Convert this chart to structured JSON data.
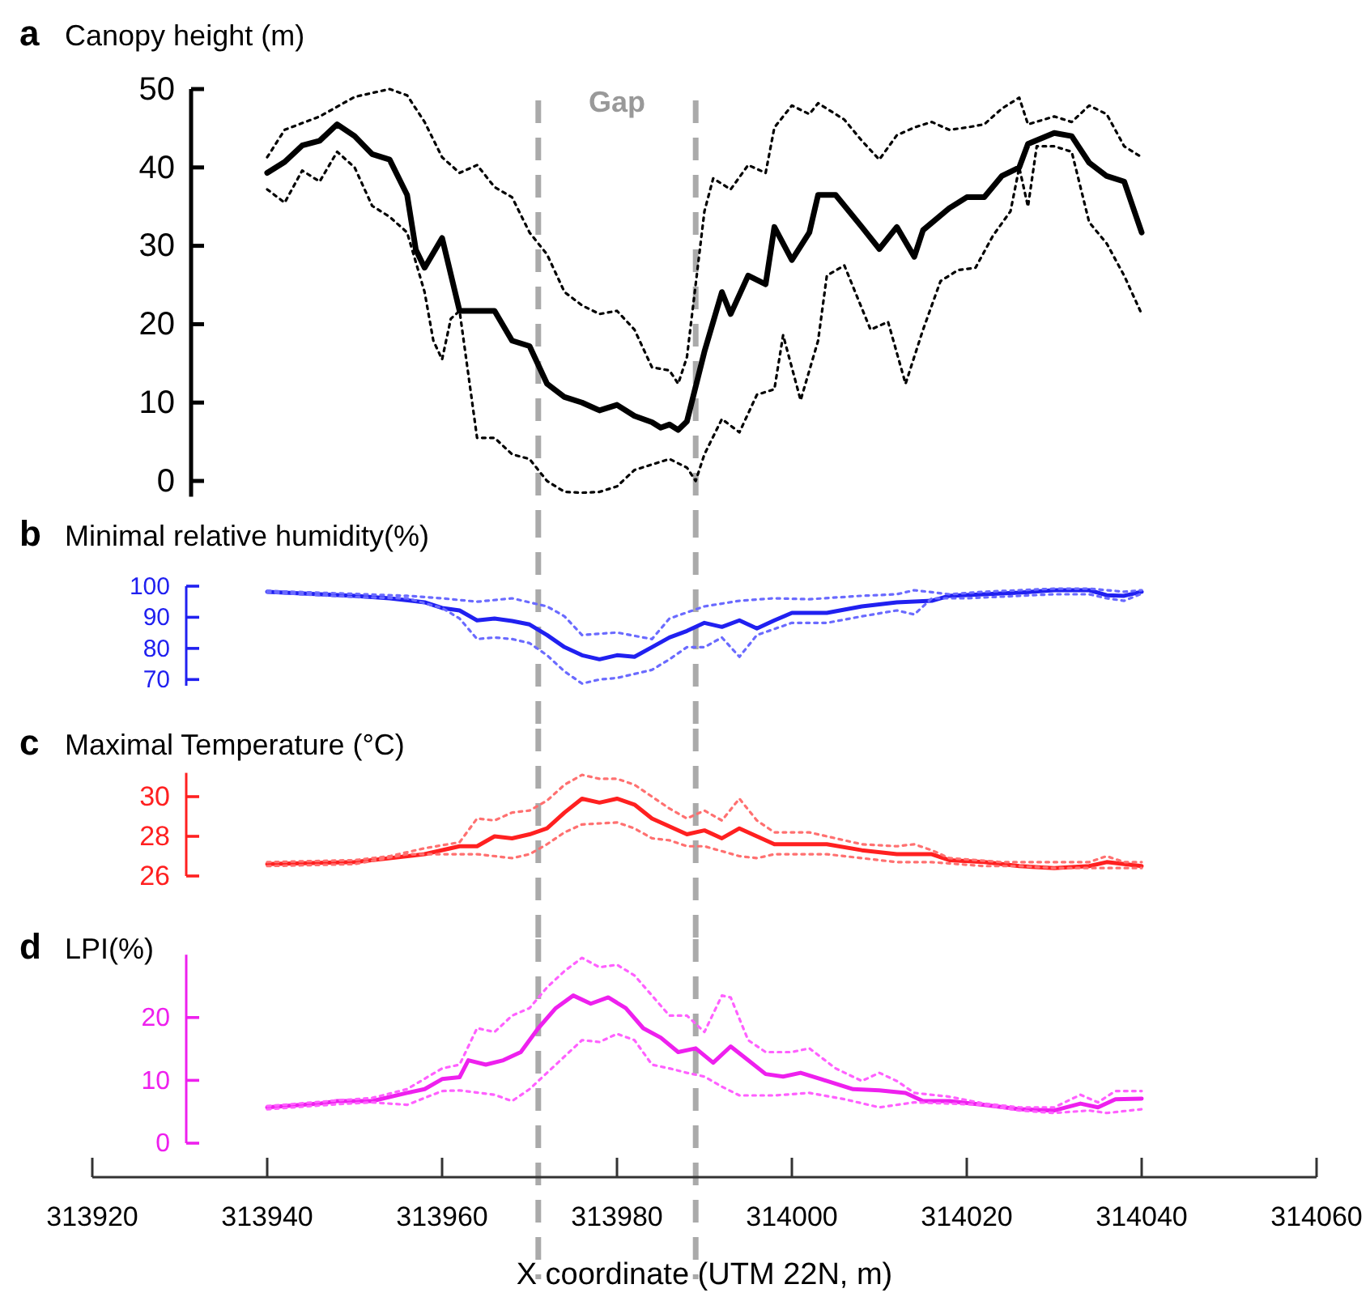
{
  "chart_data": [
    {
      "type": "line",
      "title": "Canopy height (m)",
      "annotations": [
        "a",
        "Gap"
      ],
      "xlim": [
        313920,
        314060
      ],
      "ylim": [
        -2,
        50
      ],
      "yticks": [
        0,
        10,
        20,
        30,
        40,
        50
      ],
      "tick_labels": "y",
      "ref_lines": [
        {
          "axis": "x",
          "value": 313971,
          "color": "#aaaaaa",
          "line_style": "dashed"
        },
        {
          "axis": "x",
          "value": 313989,
          "color": "#aaaaaa",
          "line_style": "dashed"
        }
      ],
      "series": [
        {
          "color": "#000000",
          "line_style": "solid",
          "x": [
            313940,
            313942,
            313944,
            313946,
            313948,
            313950,
            313952,
            313954,
            313956,
            313957,
            313958,
            313960,
            313962,
            313964,
            313966,
            313968,
            313970,
            313972,
            313974,
            313976,
            313978,
            313980,
            313982,
            313984,
            313985,
            313986,
            313987,
            313988,
            313990,
            313992,
            313993,
            313995,
            313997,
            313998,
            314000,
            314002,
            314003,
            314005,
            314008,
            314010,
            314012,
            314014,
            314015,
            314018,
            314020,
            314022,
            314024,
            314026,
            314027,
            314030,
            314032,
            314034,
            314036,
            314038,
            314040
          ],
          "values": [
            39.3,
            40.7,
            42.8,
            43.4,
            45.5,
            44,
            41.7,
            41,
            36.5,
            29.5,
            27.2,
            31,
            21.7,
            21.7,
            21.7,
            17.9,
            17.2,
            12.4,
            10.7,
            10,
            9,
            9.7,
            8.3,
            7.5,
            6.8,
            7.2,
            6.5,
            7.6,
            16.5,
            24.1,
            21.3,
            26.2,
            25.1,
            32.4,
            28.2,
            31.7,
            36.5,
            36.5,
            32.4,
            29.6,
            32.4,
            28.6,
            32,
            34.8,
            36.2,
            36.2,
            38.9,
            40,
            43,
            44.4,
            44,
            40.6,
            38.9,
            38.2,
            31.7
          ]
        },
        {
          "color": "#000000",
          "line_style": "dotted",
          "x": [
            313940,
            313942,
            313946,
            313950,
            313954,
            313956,
            313958,
            313960,
            313962,
            313964,
            313966,
            313968,
            313970,
            313972,
            313974,
            313976,
            313978,
            313980,
            313982,
            313984,
            313986,
            313987,
            313988,
            313990,
            313991,
            313993,
            313995,
            313997,
            313998,
            314000,
            314002,
            314003,
            314006,
            314008,
            314010,
            314012,
            314014,
            314016,
            314018,
            314020,
            314022,
            314024,
            314026,
            314027,
            314030,
            314032,
            314034,
            314036,
            314038,
            314040
          ],
          "values": [
            41.3,
            44.8,
            46.5,
            49,
            50,
            49.2,
            45.8,
            41.3,
            39.3,
            40.3,
            37.5,
            36.2,
            31.7,
            28.9,
            24.1,
            22.4,
            21.3,
            21.7,
            19.3,
            14.5,
            14.1,
            12.4,
            15.8,
            34.4,
            38.6,
            37.2,
            40.3,
            39.3,
            45.1,
            47.9,
            46.8,
            48.2,
            46.1,
            43.4,
            41,
            44.1,
            45.1,
            45.8,
            44.8,
            45.1,
            45.5,
            47.5,
            48.9,
            45.5,
            46.5,
            45.8,
            47.9,
            46.8,
            42.7,
            41.3
          ]
        },
        {
          "color": "#000000",
          "line_style": "dotted",
          "x": [
            313940,
            313942,
            313944,
            313946,
            313948,
            313950,
            313952,
            313954,
            313956,
            313958,
            313959,
            313960,
            313961,
            313962,
            313964,
            313966,
            313968,
            313970,
            313972,
            313974,
            313976,
            313978,
            313980,
            313982,
            313984,
            313986,
            313988,
            313989,
            313990,
            313992,
            313994,
            313996,
            313998,
            313999,
            314001,
            314003,
            314004,
            314006,
            314009,
            314011,
            314013,
            314015,
            314017,
            314019,
            314021,
            314023,
            314025,
            314026,
            314027,
            314028,
            314030,
            314032,
            314034,
            314036,
            314038,
            314040
          ],
          "values": [
            37.2,
            35.5,
            39.6,
            38.2,
            42,
            40,
            35.1,
            33.7,
            31.7,
            24.1,
            17.9,
            15.5,
            20.7,
            21.7,
            5.5,
            5.5,
            3.4,
            2.8,
            0,
            -1.4,
            -1.5,
            -1.4,
            -0.7,
            1.4,
            2.1,
            2.8,
            1.7,
            0,
            3.4,
            7.9,
            6.2,
            11,
            11.7,
            18.6,
            10.3,
            17.9,
            26.2,
            27.5,
            19.3,
            20.3,
            12.4,
            19.3,
            25.5,
            26.9,
            27.2,
            31.3,
            34.4,
            40,
            35,
            42.7,
            42.7,
            42,
            33,
            30.3,
            26.2,
            21.3
          ]
        }
      ]
    },
    {
      "type": "line",
      "title": "Minimal relative humidity(%)",
      "annotations": [
        "b"
      ],
      "xlim": [
        313920,
        314060
      ],
      "ylim": [
        68,
        100
      ],
      "yticks": [
        70,
        80,
        90,
        100
      ],
      "tick_labels": "y",
      "ref_lines": [
        {
          "axis": "x",
          "value": 313971,
          "color": "#aaaaaa",
          "line_style": "dashed"
        },
        {
          "axis": "x",
          "value": 313989,
          "color": "#aaaaaa",
          "line_style": "dashed"
        }
      ],
      "series": [
        {
          "color": "#2020f0",
          "line_style": "solid",
          "x": [
            313940,
            313946,
            313950,
            313954,
            313958,
            313960,
            313962,
            313964,
            313966,
            313968,
            313970,
            313972,
            313974,
            313976,
            313978,
            313980,
            313982,
            313984,
            313986,
            313988,
            313990,
            313992,
            313994,
            313996,
            313998,
            314000,
            314004,
            314008,
            314012,
            314016,
            314018,
            314022,
            314026,
            314030,
            314034,
            314036,
            314038,
            314040
          ],
          "values": [
            98.2,
            97.4,
            96.9,
            96.1,
            94.8,
            93,
            92.2,
            89,
            89.6,
            88.8,
            87.7,
            84.3,
            80.4,
            77.8,
            76.5,
            77.8,
            77.3,
            80.4,
            83.5,
            85.6,
            88.2,
            86.9,
            89,
            86.4,
            89,
            91.4,
            91.4,
            93.5,
            94.8,
            95.3,
            96.9,
            97.4,
            97.9,
            98.7,
            98.7,
            97.1,
            96.9,
            98.2
          ]
        },
        {
          "color": "#6a6aff",
          "line_style": "dotted",
          "x": [
            313940,
            313950,
            313956,
            313960,
            313964,
            313968,
            313972,
            313974,
            313976,
            313980,
            313984,
            313986,
            313990,
            313994,
            313998,
            314002,
            314008,
            314012,
            314014,
            314018,
            314022,
            314026,
            314030,
            314034,
            314038,
            314040
          ],
          "values": [
            98.5,
            97.5,
            96.9,
            96.1,
            95,
            96.1,
            93.5,
            90.3,
            84.3,
            85.1,
            83,
            89.6,
            93.5,
            95.3,
            96.1,
            95.8,
            96.9,
            97.4,
            98.7,
            97.4,
            98.2,
            98.7,
            99.2,
            99.2,
            98.2,
            98.7
          ]
        },
        {
          "color": "#6a6aff",
          "line_style": "dotted",
          "x": [
            313940,
            313950,
            313956,
            313960,
            313962,
            313964,
            313966,
            313968,
            313970,
            313972,
            313974,
            313976,
            313978,
            313980,
            313984,
            313986,
            313988,
            313990,
            313992,
            313994,
            313996,
            314000,
            314004,
            314008,
            314012,
            314014,
            314016,
            314020,
            314026,
            314030,
            314034,
            314036,
            314038,
            314040
          ],
          "values": [
            98,
            96.5,
            96.1,
            93,
            89.6,
            83,
            83.5,
            83,
            81.7,
            77.8,
            72.6,
            68.7,
            70,
            70.5,
            73.1,
            76.5,
            80.4,
            80.4,
            83.5,
            77.3,
            84.3,
            88.2,
            88.2,
            90.3,
            92.2,
            90.9,
            96.1,
            96.1,
            96.9,
            97.4,
            97.4,
            96.1,
            95.3,
            97.6
          ]
        }
      ]
    },
    {
      "type": "line",
      "title": "Maximal Temperature (°C)",
      "annotations": [
        "c"
      ],
      "xlim": [
        313920,
        314060
      ],
      "ylim": [
        26,
        31.2
      ],
      "yticks": [
        26,
        28,
        30
      ],
      "tick_labels": "y",
      "ref_lines": [
        {
          "axis": "x",
          "value": 313971,
          "color": "#aaaaaa",
          "line_style": "dashed"
        },
        {
          "axis": "x",
          "value": 313989,
          "color": "#aaaaaa",
          "line_style": "dashed"
        }
      ],
      "series": [
        {
          "color": "#ff2020",
          "line_style": "solid",
          "x": [
            313940,
            313950,
            313954,
            313958,
            313962,
            313964,
            313966,
            313968,
            313970,
            313972,
            313974,
            313976,
            313978,
            313980,
            313982,
            313984,
            313986,
            313988,
            313990,
            313992,
            313994,
            313996,
            313998,
            314002,
            314004,
            314008,
            314012,
            314016,
            314018,
            314022,
            314026,
            314030,
            314034,
            314036,
            314038,
            314040
          ],
          "values": [
            26.6,
            26.7,
            26.9,
            27.1,
            27.5,
            27.5,
            28,
            27.9,
            28.1,
            28.4,
            29.2,
            29.9,
            29.7,
            29.9,
            29.6,
            28.9,
            28.5,
            28.1,
            28.3,
            27.9,
            28.4,
            28,
            27.6,
            27.6,
            27.6,
            27.3,
            27.1,
            27.1,
            26.8,
            26.7,
            26.5,
            26.4,
            26.5,
            26.7,
            26.6,
            26.5
          ]
        },
        {
          "color": "#ff7070",
          "line_style": "dotted",
          "x": [
            313940,
            313950,
            313954,
            313958,
            313962,
            313964,
            313966,
            313968,
            313970,
            313972,
            313974,
            313976,
            313978,
            313980,
            313982,
            313984,
            313986,
            313988,
            313990,
            313992,
            313994,
            313996,
            313998,
            314002,
            314004,
            314008,
            314012,
            314014,
            314016,
            314018,
            314024,
            314030,
            314034,
            314036,
            314038,
            314040
          ],
          "values": [
            26.7,
            26.8,
            27,
            27.4,
            27.7,
            28.9,
            28.8,
            29.2,
            29.3,
            29.8,
            30.6,
            31.1,
            30.9,
            30.9,
            30.6,
            30,
            29.4,
            28.9,
            29.3,
            28.8,
            29.9,
            28.8,
            28.2,
            28.2,
            28,
            27.6,
            27.5,
            27.6,
            27.3,
            26.9,
            26.7,
            26.7,
            26.7,
            27,
            26.7,
            26.7
          ]
        },
        {
          "color": "#ff7070",
          "line_style": "dotted",
          "x": [
            313940,
            313950,
            313956,
            313960,
            313964,
            313968,
            313970,
            313972,
            313974,
            313976,
            313980,
            313982,
            313984,
            313986,
            313988,
            313990,
            313994,
            313996,
            313998,
            314004,
            314008,
            314012,
            314016,
            314022,
            314026,
            314030,
            314034,
            314036,
            314040
          ],
          "values": [
            26.5,
            26.6,
            27.1,
            27.1,
            27.1,
            26.9,
            27.1,
            27.6,
            28.2,
            28.6,
            28.7,
            28.4,
            27.9,
            27.8,
            27.5,
            27.5,
            27,
            26.9,
            27.1,
            27.1,
            26.9,
            26.7,
            26.7,
            26.5,
            26.5,
            26.4,
            26.4,
            26.4,
            26.4
          ]
        }
      ]
    },
    {
      "type": "line",
      "title": "LPI(%)",
      "annotations": [
        "d"
      ],
      "xlabel": "X coordinate (UTM 22N, m)",
      "xlim": [
        313920,
        314060
      ],
      "xticks": [
        313920,
        313940,
        313960,
        313980,
        314000,
        314020,
        314040,
        314060
      ],
      "ylim": [
        0,
        30
      ],
      "yticks": [
        0,
        10,
        20
      ],
      "ref_lines": [
        {
          "axis": "x",
          "value": 313971,
          "color": "#aaaaaa",
          "line_style": "dashed"
        },
        {
          "axis": "x",
          "value": 313989,
          "color": "#aaaaaa",
          "line_style": "dashed"
        }
      ],
      "series": [
        {
          "color": "#ee20ee",
          "line_style": "solid",
          "x": [
            313940,
            313946,
            313948,
            313952,
            313956,
            313958,
            313960,
            313962,
            313963,
            313965,
            313967,
            313969,
            313971,
            313973,
            313975,
            313977,
            313979,
            313981,
            313983,
            313985,
            313987,
            313989,
            313991,
            313993,
            313995,
            313997,
            313999,
            314001,
            314004,
            314007,
            314010,
            314013,
            314015,
            314018,
            314022,
            314026,
            314030,
            314033,
            314035,
            314037,
            314040
          ],
          "values": [
            5.7,
            6.3,
            6.7,
            6.7,
            8,
            8.6,
            10.2,
            10.5,
            13.2,
            12.5,
            13.2,
            14.5,
            18.3,
            21.5,
            23.5,
            22.2,
            23.2,
            21.5,
            18.3,
            16.8,
            14.5,
            15.1,
            12.8,
            15.4,
            13.2,
            11,
            10.6,
            11.2,
            9.9,
            8.6,
            8.4,
            8,
            6.7,
            6.7,
            6.1,
            5.4,
            5.2,
            6.3,
            5.7,
            7,
            7.1
          ]
        },
        {
          "color": "#ff60ff",
          "line_style": "dotted",
          "x": [
            313940,
            313948,
            313952,
            313956,
            313960,
            313962,
            313964,
            313966,
            313968,
            313970,
            313972,
            313974,
            313976,
            313978,
            313980,
            313982,
            313984,
            313986,
            313988,
            313990,
            313992,
            313993,
            313995,
            313997,
            314000,
            314002,
            314005,
            314008,
            314010,
            314012,
            314014,
            314018,
            314022,
            314026,
            314030,
            314033,
            314035,
            314037,
            314040
          ],
          "values": [
            5.9,
            6.8,
            7.2,
            8.6,
            11.9,
            12.5,
            18.3,
            17.7,
            20.3,
            21.5,
            24.8,
            27.4,
            29.5,
            28,
            28.4,
            26.7,
            23.5,
            20.3,
            20.3,
            17.7,
            23.5,
            23.2,
            16.4,
            14.5,
            14.5,
            15.1,
            11.9,
            9.9,
            11.2,
            9.9,
            8,
            7.4,
            6.3,
            5.7,
            5.7,
            7.7,
            6.5,
            8.3,
            8.3
          ]
        },
        {
          "color": "#ff60ff",
          "line_style": "dotted",
          "x": [
            313940,
            313948,
            313952,
            313956,
            313960,
            313962,
            313966,
            313968,
            313970,
            313972,
            313974,
            313976,
            313978,
            313980,
            313982,
            313984,
            313986,
            313988,
            313990,
            313992,
            313994,
            313998,
            314002,
            314006,
            314010,
            314014,
            314018,
            314022,
            314026,
            314030,
            314034,
            314036,
            314040
          ],
          "values": [
            5.4,
            6.2,
            6.5,
            6.1,
            8.3,
            8.4,
            7.7,
            6.7,
            8.6,
            11.2,
            13.8,
            16.4,
            16.1,
            17.4,
            16.4,
            12.5,
            11.9,
            11.2,
            10.6,
            9,
            7.6,
            7.6,
            8,
            7,
            5.7,
            6.5,
            6.3,
            6.1,
            5.2,
            4.8,
            5.2,
            4.8,
            5.4
          ]
        }
      ]
    }
  ]
}
